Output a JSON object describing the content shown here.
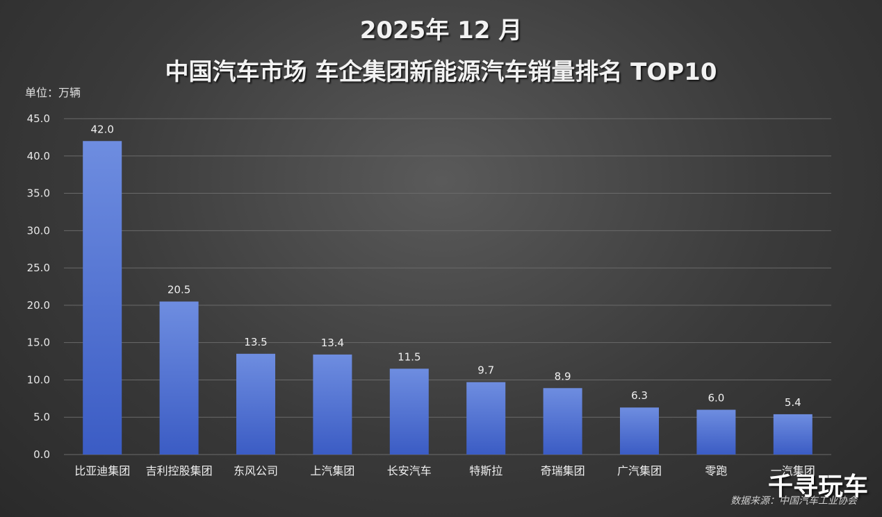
{
  "title_line1": "2025年 12 月",
  "title_line2": "中国汽车市场  车企集团新能源汽车销量排名  TOP10",
  "unit_label": "单位：万辆",
  "watermark": "千寻玩车",
  "source": "数据来源：中国汽车工业协会",
  "colors": {
    "bar_top": "#6e8de0",
    "bar_bottom": "#3b5cc4",
    "background": "#3a3a3a"
  },
  "chart_data": {
    "type": "bar",
    "categories": [
      "比亚迪集团",
      "吉利控股集团",
      "东风公司",
      "上汽集团",
      "长安汽车",
      "特斯拉",
      "奇瑞集团",
      "广汽集团",
      "零跑",
      "一汽集团"
    ],
    "values": [
      42.0,
      20.5,
      13.5,
      13.4,
      11.5,
      9.7,
      8.9,
      6.3,
      6.0,
      5.4
    ],
    "data_labels": [
      "42.0",
      "20.5",
      "13.5",
      "13.4",
      "11.5",
      "9.7",
      "8.9",
      "6.3",
      "6.0",
      "5.4"
    ],
    "yticks": [
      "0.0",
      "5.0",
      "10.0",
      "15.0",
      "20.0",
      "25.0",
      "30.0",
      "35.0",
      "40.0",
      "45.0"
    ],
    "ylim": [
      0,
      45
    ],
    "ylabel": "单位：万辆",
    "grid": true,
    "legend": "none"
  }
}
